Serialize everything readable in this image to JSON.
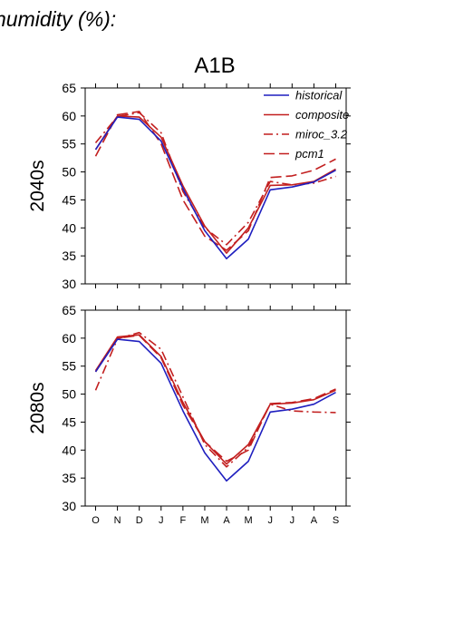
{
  "header": {
    "title": "humidity (%):",
    "scenario": "A1B"
  },
  "styles": {
    "historical": {
      "color": "#1f1fbf",
      "dash": ""
    },
    "composite": {
      "color": "#c21f1f",
      "dash": ""
    },
    "miroc_3.2": {
      "color": "#c21f1f",
      "dash": "10,4,2,4"
    },
    "pcm1": {
      "color": "#c21f1f",
      "dash": "12,5"
    }
  },
  "chart_data": [
    {
      "type": "line",
      "panel_label": "2040s",
      "categories": [
        "O",
        "N",
        "D",
        "J",
        "F",
        "M",
        "A",
        "M",
        "J",
        "J",
        "A",
        "S"
      ],
      "ylim": [
        30,
        65
      ],
      "yticks": [
        30,
        35,
        40,
        45,
        50,
        55,
        60,
        65
      ],
      "legend_position": "top-right",
      "series": [
        {
          "name": "historical",
          "values": [
            54.0,
            59.8,
            59.4,
            55.5,
            47.0,
            39.5,
            34.5,
            38.0,
            46.8,
            47.3,
            48.2,
            50.3
          ]
        },
        {
          "name": "composite",
          "values": [
            54.0,
            60.0,
            59.8,
            56.2,
            47.5,
            40.3,
            35.5,
            40.0,
            47.6,
            47.7,
            48.3,
            50.5
          ]
        },
        {
          "name": "miroc_3.2",
          "values": [
            55.2,
            59.9,
            60.6,
            57.0,
            46.5,
            40.0,
            37.0,
            41.0,
            48.3,
            47.7,
            48.0,
            49.2
          ]
        },
        {
          "name": "pcm1",
          "values": [
            52.8,
            60.2,
            60.8,
            55.0,
            45.0,
            38.5,
            36.0,
            39.5,
            49.0,
            49.3,
            50.3,
            52.3
          ]
        }
      ]
    },
    {
      "type": "line",
      "panel_label": "2080s",
      "categories": [
        "O",
        "N",
        "D",
        "J",
        "F",
        "M",
        "A",
        "M",
        "J",
        "J",
        "A",
        "S"
      ],
      "ylim": [
        30,
        65
      ],
      "yticks": [
        30,
        35,
        40,
        45,
        50,
        55,
        60,
        65
      ],
      "series": [
        {
          "name": "historical",
          "values": [
            54.0,
            59.8,
            59.4,
            55.5,
            47.0,
            39.5,
            34.5,
            38.0,
            46.8,
            47.3,
            48.2,
            50.3
          ]
        },
        {
          "name": "composite",
          "values": [
            54.2,
            60.2,
            60.6,
            56.7,
            48.5,
            41.5,
            37.5,
            41.0,
            48.2,
            48.4,
            49.0,
            50.7
          ]
        },
        {
          "name": "miroc_3.2",
          "values": [
            50.7,
            59.9,
            61.0,
            58.0,
            49.5,
            41.0,
            37.0,
            40.5,
            48.2,
            47.0,
            46.8,
            46.7
          ]
        },
        {
          "name": "pcm1",
          "values": [
            54.0,
            60.0,
            60.5,
            56.5,
            48.0,
            41.5,
            38.0,
            40.0,
            48.3,
            48.5,
            49.2,
            50.9
          ]
        }
      ]
    }
  ]
}
